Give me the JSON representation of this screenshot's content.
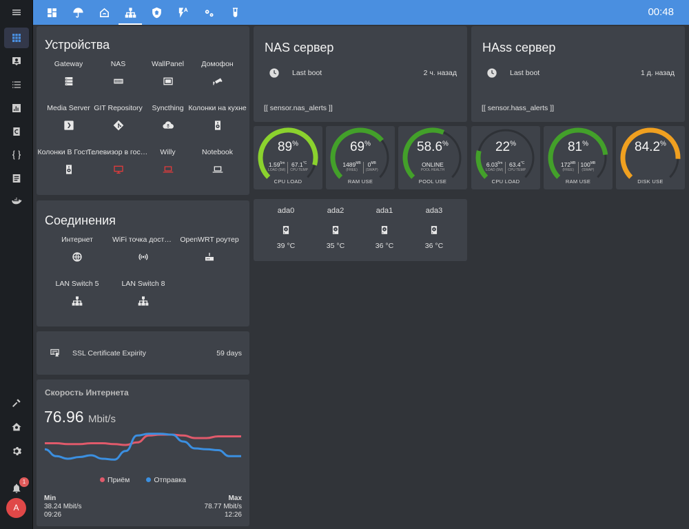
{
  "topbar": {
    "time": "00:48",
    "tabs": [
      {
        "icon": "dashboard-icon"
      },
      {
        "icon": "umbrella-icon"
      },
      {
        "icon": "home-automation-icon"
      },
      {
        "icon": "network-icon",
        "active": true
      },
      {
        "icon": "shield-home-icon"
      },
      {
        "icon": "flash-auto-icon"
      },
      {
        "icon": "cogs-icon"
      },
      {
        "icon": "test-tube-icon"
      }
    ]
  },
  "sidebar": {
    "items": [
      "menu-icon",
      "grid-icon",
      "account-box-icon",
      "list-icon",
      "chart-icon",
      "ccleaner-icon",
      "code-braces-icon",
      "log-icon",
      "docker-icon"
    ],
    "bottom": [
      "hammer-icon",
      "home-gear-icon",
      "settings-icon"
    ],
    "notifications_count": "1",
    "avatar_letter": "A"
  },
  "devices": {
    "title": "Устройства",
    "items": [
      {
        "name": "Gateway",
        "icon": "server-icon"
      },
      {
        "name": "NAS",
        "icon": "nas-icon"
      },
      {
        "name": "WallPanel",
        "icon": "tablet-icon"
      },
      {
        "name": "Домофон",
        "icon": "cctv-icon"
      },
      {
        "name": "Media Server",
        "icon": "plex-icon"
      },
      {
        "name": "GIT Repository",
        "icon": "git-icon"
      },
      {
        "name": "Syncthing",
        "icon": "cloud-sync-icon"
      },
      {
        "name": "Колонки на кухне",
        "icon": "speaker-icon"
      },
      {
        "name": "Колонки В Гостиной",
        "icon": "speaker-icon"
      },
      {
        "name": "Телевизор в гостиной",
        "icon": "tv-icon",
        "alert": true
      },
      {
        "name": "Willy",
        "icon": "laptop-icon",
        "alert": true
      },
      {
        "name": "Notebook",
        "icon": "laptop-icon"
      }
    ]
  },
  "connections": {
    "title": "Соединения",
    "items": [
      {
        "name": "Интернет",
        "icon": "web-icon"
      },
      {
        "name": "WiFi точка доступа",
        "icon": "wifi-access-point-icon"
      },
      {
        "name": "OpenWRT роутер",
        "icon": "router-icon"
      },
      {
        "name": "LAN Switch 5",
        "icon": "lan-icon"
      },
      {
        "name": "LAN Switch 8",
        "icon": "lan-icon"
      }
    ]
  },
  "ssl": {
    "label": "SSL Certificate Expirity",
    "value": "59 days",
    "icon": "certificate-icon"
  },
  "speed": {
    "title": "Скорость Интернета",
    "value": "76.96",
    "unit": "Mbit/s",
    "legend_rx": "Приём",
    "legend_tx": "Отправка",
    "min_label": "Min",
    "min_value": "38.24 Mbit/s",
    "min_time": "09:26",
    "max_label": "Max",
    "max_value": "78.77 Mbit/s",
    "max_time": "12:26",
    "rx_color": "#e05a6b",
    "tx_color": "#3b8fe0",
    "rx_series": [
      62,
      62,
      61,
      61,
      62,
      62,
      61,
      60,
      63,
      71,
      72,
      72,
      71,
      68,
      68,
      70,
      70,
      70
    ],
    "tx_series": [
      55,
      47,
      44,
      46,
      48,
      44,
      43,
      53,
      71,
      73,
      73,
      72,
      64,
      56,
      55,
      54,
      47,
      47
    ]
  },
  "nas": {
    "title": "NAS сервер",
    "boot_label": "Last boot",
    "boot_value": "2 ч. назад",
    "alerts": "[[ sensor.nas_alerts ]]"
  },
  "hass": {
    "title": "HAss сервер",
    "boot_label": "Last boot",
    "boot_value": "1 д. назад",
    "alerts": "[[ sensor.hass_alerts ]]"
  },
  "gauges": [
    {
      "value": "89",
      "pct": 89,
      "unit": "%",
      "color": "#8bd22e",
      "label": "CPU LOAD",
      "subs": [
        {
          "v": "1.59",
          "u": "5m",
          "l": "LOAD (5M)"
        },
        {
          "v": "67.1",
          "u": "°C",
          "l": "CPU TEMP"
        }
      ]
    },
    {
      "value": "69",
      "pct": 69,
      "unit": "%",
      "color": "#43a02a",
      "label": "RAM USE",
      "subs": [
        {
          "v": "1489",
          "u": "MB",
          "l": "(FREE)"
        },
        {
          "v": "0",
          "u": "MB",
          "l": "(SWAP)"
        }
      ]
    },
    {
      "value": "58.6",
      "pct": 58.6,
      "unit": "%",
      "color": "#43a02a",
      "label": "POOL USE",
      "subs": [
        {
          "v": "ONLINE",
          "u": "",
          "l": "POOL HEALTH"
        }
      ]
    },
    {
      "value": "22",
      "pct": 22,
      "unit": "%",
      "color": "#43a02a",
      "label": "CPU LOAD",
      "subs": [
        {
          "v": "6.03",
          "u": "5m",
          "l": "LOAD (5M)"
        },
        {
          "v": "63.4",
          "u": "°C",
          "l": "CPU TEMP"
        }
      ]
    },
    {
      "value": "81",
      "pct": 81,
      "unit": "%",
      "color": "#43a02a",
      "label": "RAM USE",
      "subs": [
        {
          "v": "172",
          "u": "MB",
          "l": "(FREE)"
        },
        {
          "v": "100",
          "u": "MB",
          "l": "(SWAP)"
        }
      ]
    },
    {
      "value": "84.2",
      "pct": 84.2,
      "unit": "%",
      "color": "#f0a020",
      "label": "DISK USE",
      "subs": []
    }
  ],
  "disks": [
    {
      "name": "ada0",
      "temp": "39 °C"
    },
    {
      "name": "ada2",
      "temp": "35 °C"
    },
    {
      "name": "ada1",
      "temp": "36 °C"
    },
    {
      "name": "ada3",
      "temp": "36 °C"
    }
  ]
}
